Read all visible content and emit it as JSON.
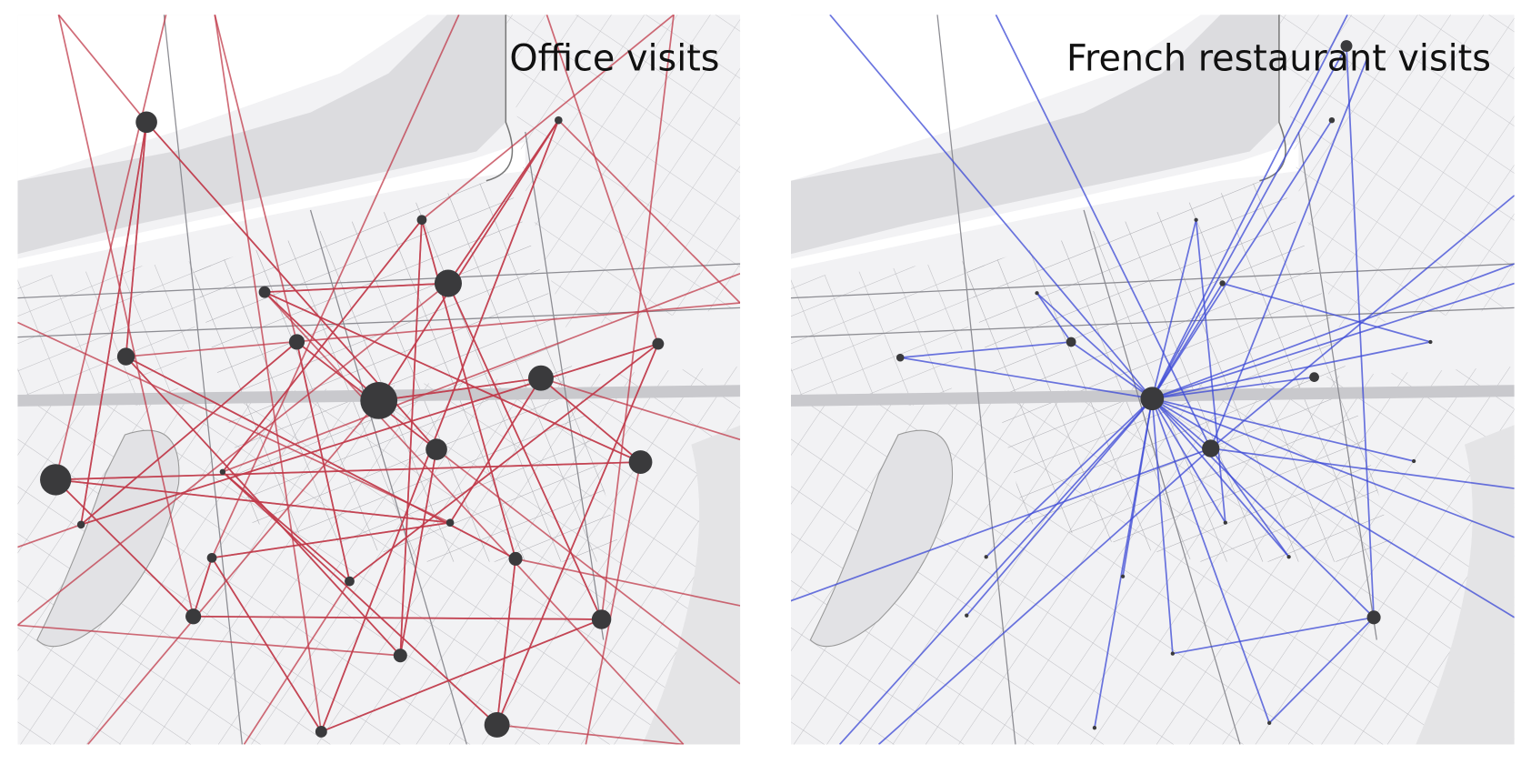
{
  "panels": [
    {
      "title": "Office visits"
    },
    {
      "title": "French restaurant visits"
    }
  ]
}
